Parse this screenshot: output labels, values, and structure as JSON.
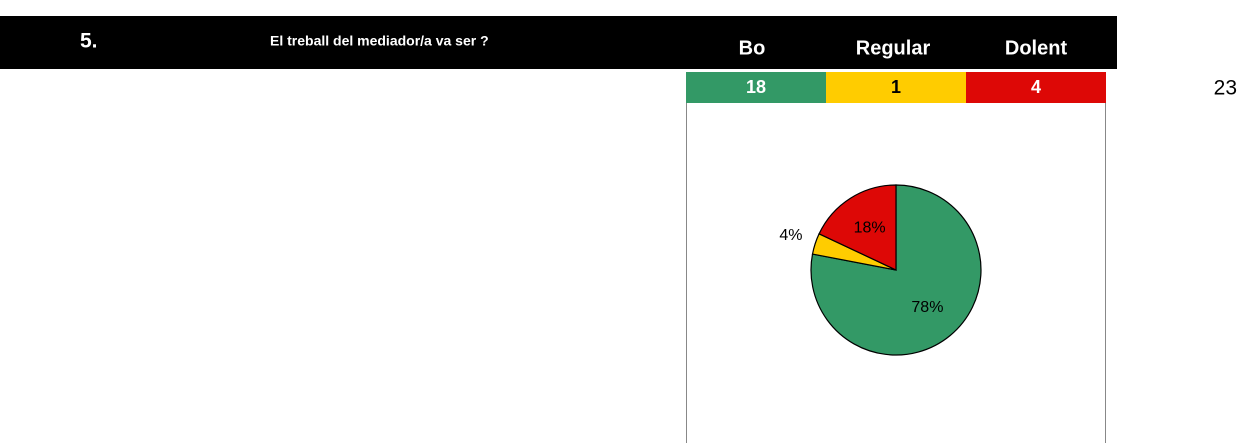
{
  "header": {
    "number": "5.",
    "question": "El treball del mediador/a va ser ?",
    "options": [
      "Bo",
      "Regular",
      "Dolent"
    ]
  },
  "counts": {
    "values": [
      "18",
      "1",
      "4"
    ],
    "total": "23"
  },
  "chart_data": {
    "type": "pie",
    "values": [
      78,
      4,
      18
    ],
    "value_labels": [
      "78%",
      "4%",
      "18%"
    ],
    "colors": [
      "#339966",
      "#ffcc00",
      "#dd0806"
    ]
  }
}
